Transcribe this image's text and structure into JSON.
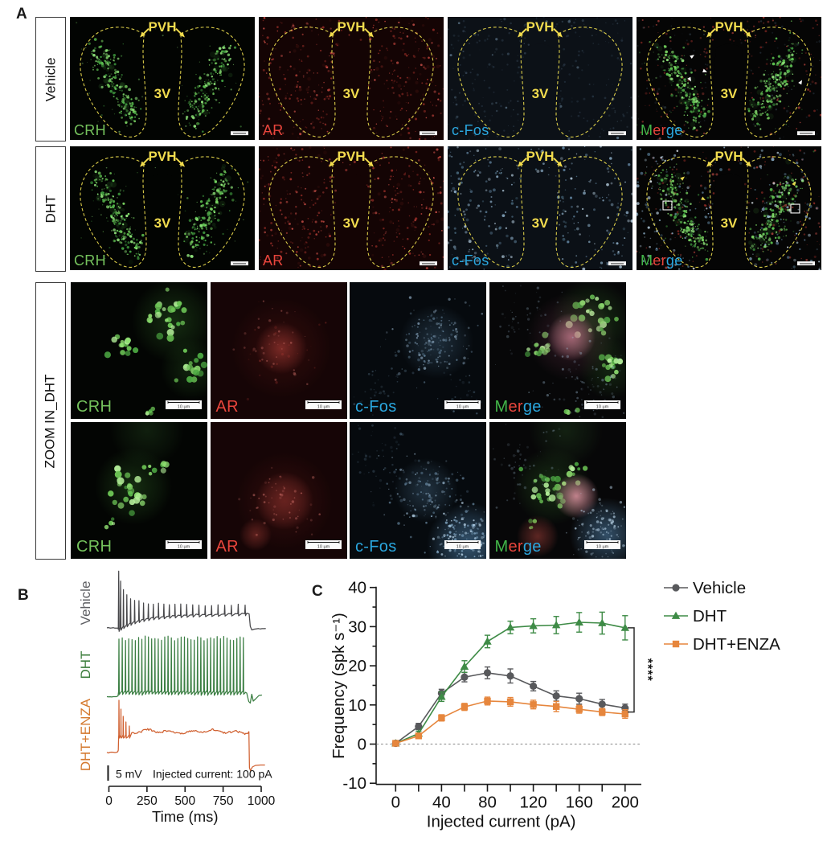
{
  "colors": {
    "crh_label": "#74c15c",
    "ar_label": "#e8453c",
    "cfos_label": "#2aa7df",
    "yellow": "#f2dc4e",
    "vehicle_trace": "#47474a",
    "dht_trace": "#3a7e42",
    "enza_trace": "#d06030",
    "vehicle_label": "#5e5f63",
    "dht_label": "#3c7d3c",
    "enza_label": "#d4792f"
  },
  "merge_segments": [
    {
      "text": "M",
      "color": "#43b649"
    },
    {
      "text": "er",
      "color": "#e8453c"
    },
    {
      "text": "ge",
      "color": "#2aa7df"
    }
  ],
  "figure": {
    "panel_a": {
      "label": "A",
      "channels": [
        "CRH",
        "AR",
        "c-Fos",
        "Merge"
      ],
      "rows": [
        {
          "label": "Vehicle"
        },
        {
          "label": "DHT"
        }
      ],
      "region_label": "PVH",
      "ventricle_label": "3V",
      "zoom": {
        "label": "ZOOM IN_DHT",
        "scale_text": "10 µm"
      }
    },
    "panel_b": {
      "label": "B",
      "trace_labels": [
        "Vehicle",
        "DHT",
        "DHT+ENZA"
      ],
      "scale_label": "5 mV",
      "stim_label": "Injected current: 100 pA",
      "x_ticks": [
        "0",
        "250",
        "500",
        "750",
        "1000"
      ],
      "x_axis_label": "Time (ms)"
    },
    "panel_c": {
      "label": "C",
      "significance": "****"
    }
  },
  "chart_data": {
    "type": "line",
    "title": "",
    "xlabel": "Injected current (pA)",
    "ylabel": "Frequency (spk s⁻¹)",
    "x": [
      0,
      20,
      40,
      60,
      80,
      100,
      120,
      140,
      160,
      180,
      200
    ],
    "xlim": [
      -8,
      212
    ],
    "ylim": [
      -10,
      40
    ],
    "x_tick_step": 20,
    "x_label_step": 40,
    "y_tick_major": 10,
    "y_tick_minor": 5,
    "zero_line_dotted": true,
    "legend_position": "right-top",
    "significance": "****",
    "series": [
      {
        "name": "Vehicle",
        "marker": "circle",
        "color": "#58595c",
        "values": [
          0.2,
          4.5,
          13.0,
          17.1,
          18.2,
          17.4,
          14.8,
          12.3,
          11.6,
          10.2,
          9.2
        ],
        "errors": [
          0.4,
          0.8,
          1.0,
          1.2,
          1.5,
          1.8,
          1.2,
          1.3,
          1.4,
          1.2,
          1.0
        ]
      },
      {
        "name": "DHT",
        "marker": "triangle",
        "color": "#3e8b46",
        "values": [
          0.2,
          2.7,
          12.1,
          19.8,
          26.2,
          29.8,
          30.2,
          30.4,
          31.1,
          30.9,
          29.7
        ],
        "errors": [
          0.4,
          0.6,
          1.2,
          1.5,
          1.6,
          1.6,
          1.8,
          2.2,
          2.5,
          2.8,
          3.1
        ]
      },
      {
        "name": "DHT+ENZA",
        "marker": "square",
        "color": "#e6863d",
        "values": [
          0.2,
          2.1,
          6.7,
          9.5,
          11.0,
          10.8,
          10.1,
          9.6,
          8.9,
          8.2,
          7.7
        ],
        "errors": [
          0.4,
          0.5,
          0.8,
          0.9,
          1.0,
          1.1,
          1.1,
          1.3,
          1.0,
          0.9,
          1.1
        ]
      }
    ]
  }
}
